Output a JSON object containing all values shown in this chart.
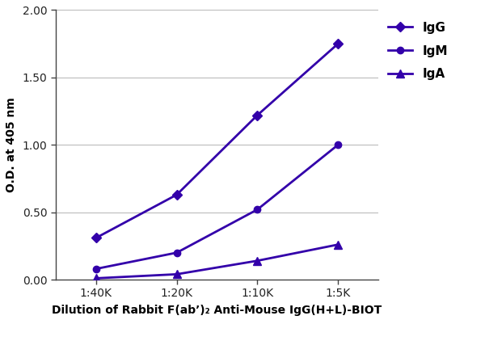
{
  "x_labels": [
    "1:40K",
    "1:20K",
    "1:10K",
    "1:5K"
  ],
  "x_values": [
    1,
    2,
    3,
    4
  ],
  "series": {
    "IgG": {
      "y": [
        0.31,
        0.63,
        1.22,
        1.75
      ],
      "color": "#3300AA",
      "marker": "D",
      "markersize": 6,
      "linewidth": 2.0
    },
    "IgM": {
      "y": [
        0.08,
        0.2,
        0.52,
        1.0
      ],
      "color": "#3300AA",
      "marker": "o",
      "markersize": 6,
      "linewidth": 2.0
    },
    "IgA": {
      "y": [
        0.01,
        0.04,
        0.14,
        0.26
      ],
      "color": "#3300AA",
      "marker": "^",
      "markersize": 7,
      "linewidth": 2.0
    }
  },
  "ylabel": "O.D. at 405 nm",
  "xlabel": "Dilution of Rabbit F(ab’)₂ Anti-Mouse IgG(H+L)-BIOT",
  "ylim": [
    0.0,
    2.0
  ],
  "yticks": [
    0.0,
    0.5,
    1.0,
    1.5,
    2.0
  ],
  "ytick_labels": [
    "0.00",
    "0.50",
    "1.00",
    "1.50",
    "2.00"
  ],
  "background_color": "#ffffff",
  "grid_color": "#bbbbbb",
  "legend_order": [
    "IgG",
    "IgM",
    "IgA"
  ],
  "axis_label_fontsize": 10,
  "tick_fontsize": 10,
  "legend_fontsize": 11
}
